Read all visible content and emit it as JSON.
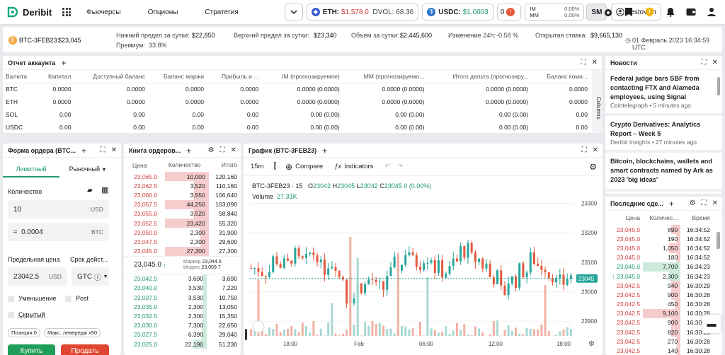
{
  "top": {
    "logo": "Deribit",
    "nav": [
      "Фьючерсы",
      "Опционы",
      "Стратегия"
    ],
    "eth_label": "ETH:",
    "eth_price": "$1,578.0",
    "dvol": "DVOL: 68.36",
    "usdc_label": "USDC:",
    "usdc_price": "$1.0003",
    "notif_count": "0",
    "im_label": "IM",
    "im_val": "0.00%",
    "mm_label": "MM",
    "mm_val": "0.00%",
    "sm": "SM",
    "user": "testovich"
  },
  "ticker": {
    "instrument": "BTC-3FEB23",
    "price": "$23,045",
    "low_label": "Нижний предел за сутки:",
    "low": "$22,850",
    "premium_label": "Премиум:",
    "premium": "33.8%",
    "high_label": "Верхний предел за сутки:",
    "high": "$23,340",
    "volume_label": "Объем за сутки:",
    "volume": "$2,445,600",
    "change_label": "Изменение 24h:",
    "change": "-0.58 %",
    "oi_label": "Открытая ставка:",
    "oi": "$9,665,130",
    "datetime": "01 Февраль 2023 16:34:59 UTC"
  },
  "account": {
    "title": "Отчет аккаунта",
    "columns_tab": "Columns",
    "headers": [
      "Валюта",
      "Капитал",
      "Доступный баланс",
      "Баланс маржи",
      "Прибыль и ...",
      "IM (прогнозируемое)",
      "MM (прогнозируемо...",
      "Итого дельта (прогнозиру...",
      "Баланс коми..."
    ],
    "rows": [
      [
        "BTC",
        "0.0000",
        "0.0000",
        "0.0000",
        "0.0000",
        "0.0000 (0.0000)",
        "0.0000 (0.0000)",
        "0.0000 (0.0000)",
        "0.0000"
      ],
      [
        "ETH",
        "0.0000",
        "0.0000",
        "0.0000",
        "0.0000",
        "0.0000 (0.0000)",
        "0.0000 (0.0000)",
        "0.0000 (0.0000)",
        "0.0000"
      ],
      [
        "SOL",
        "0.00",
        "0.00",
        "0.00",
        "0.00",
        "0.00 (0.00)",
        "0.00 (0.00)",
        "0.00 (0.00)",
        "0.00"
      ],
      [
        "USDC",
        "0.00",
        "0.00",
        "0.00",
        "0.00",
        "0.00 (0.00)",
        "0.00 (0.00)",
        "0.00 (0.00)",
        "0.00"
      ]
    ]
  },
  "order_form": {
    "title": "Форма ордера (BTC...",
    "tab_limit": "Лимитный",
    "tab_market": "Рыночный",
    "qty_label": "Количество",
    "qty": "10",
    "qty_unit": "USD",
    "btc_prefix": "≈",
    "btc_qty": "0.0004",
    "btc_unit": "BTC",
    "limit_label": "Предельная цена",
    "tif_label": "Срок дейст...",
    "limit_price": "23042.5",
    "limit_unit": "USD",
    "tif": "GTC",
    "reduce": "Уменьшение",
    "post": "Post",
    "hidden": "Скрытый",
    "position": "Позиция 0",
    "max_lev": "Макс. левередж x50",
    "buy": "Купить",
    "sell": "Продать"
  },
  "orderbook": {
    "title": "Книга ордеров...",
    "headers": [
      "Цена",
      "Количество",
      "Итого"
    ],
    "asks": [
      [
        "23,065.0",
        "10,000",
        "120,160",
        1.0
      ],
      [
        "23,062.5",
        "3,520",
        "110,160",
        0.35
      ],
      [
        "23,060.0",
        "3,550",
        "106,640",
        0.35
      ],
      [
        "23,057.5",
        "44,250",
        "103,090",
        1.0
      ],
      [
        "23,055.0",
        "3,520",
        "58,840",
        0.35
      ],
      [
        "23,052.5",
        "23,420",
        "55,320",
        1.0
      ],
      [
        "23,050.0",
        "2,300",
        "31,900",
        0.2
      ],
      [
        "23,047.5",
        "2,300",
        "29,600",
        0.2
      ],
      [
        "23,045.0",
        "27,300",
        "27,300",
        1.0
      ]
    ],
    "mid": "23,045.0",
    "mark_label": "Маркер",
    "mark": "23,044.5",
    "index_label": "Индекс",
    "index": "23,009.7",
    "bids": [
      [
        "23,042.5",
        "3,690",
        "3,690",
        0.1
      ],
      [
        "23,040.0",
        "3,530",
        "7,220",
        0.1
      ],
      [
        "23,037.5",
        "3,530",
        "10,750",
        0.1
      ],
      [
        "23,035.0",
        "2,300",
        "13,050",
        0.1
      ],
      [
        "23,032.5",
        "2,300",
        "15,350",
        0.1
      ],
      [
        "23,030.0",
        "7,300",
        "22,650",
        0.15
      ],
      [
        "23,027.5",
        "6,390",
        "29,040",
        0.15
      ],
      [
        "23,025.0",
        "22,190",
        "51,230",
        0.4
      ]
    ]
  },
  "chart": {
    "title": "График (BTC-3FEB23)",
    "interval": "15m",
    "compare": "Compare",
    "indicators": "Indicators",
    "symbol": "BTC-3FEB23 · 15",
    "o_label": "O",
    "o": "23042",
    "h_label": "H",
    "h": "23045",
    "l_label": "L",
    "l": "23042",
    "c_label": "C",
    "c": "23045",
    "chg": "0 (0.00%)",
    "vol_label": "Volume",
    "vol": "27.31K",
    "price_tag": "23045",
    "yticks": [
      "23300",
      "23200",
      "23100",
      "23000",
      "22900"
    ],
    "xticks": [
      "18:00",
      "Feb",
      "06:00",
      "12:00",
      "18:00"
    ]
  },
  "chart_data": {
    "type": "candlestick",
    "y_range": [
      22850,
      23330
    ],
    "ticks": [
      23300,
      23200,
      23100,
      23000,
      22900
    ],
    "last": 23045
  },
  "news": {
    "title": "Новости",
    "items": [
      {
        "headline": "Federal judge bars SBF from contacting FTX and Alameda employees, using Signal",
        "meta": "Cointelegraph • 5 minutes ago"
      },
      {
        "headline": "Crypto Derivatives: Analytics Report – Week 5",
        "meta": "Deribit Insights • 27 minutes ago"
      },
      {
        "headline": "Bitcoin, blockchains, wallets and smart contracts named by Ark as 2023 'big ideas'",
        "meta": ""
      }
    ]
  },
  "trades": {
    "title": "Последние сде...",
    "headers": [
      "Цена",
      "Количес...",
      "Время"
    ],
    "rows": [
      [
        "23,045.0",
        "890",
        "16:34:52",
        "r",
        0.25
      ],
      [
        "23,045.0",
        "190",
        "16:34:52",
        "r",
        0.1
      ],
      [
        "23,045.0",
        "1,050",
        "16:34:52",
        "r",
        0.3
      ],
      [
        "23,045.0",
        "180",
        "16:34:52",
        "r",
        0.1
      ],
      [
        "23,045.0",
        "7,700",
        "16:34:23",
        "g",
        1.0
      ],
      [
        "↑ 23,045.0",
        "2,300",
        "16:34:23",
        "g",
        0.3
      ],
      [
        "23,042.5",
        "940",
        "16:30:29",
        "r",
        0.25
      ],
      [
        "23,042.5",
        "900",
        "16:30:28",
        "r",
        0.25
      ],
      [
        "23,042.5",
        "450",
        "16:30:28",
        "r",
        0.15
      ],
      [
        "23,042.5",
        "9,100",
        "16:30:28",
        "r",
        1.0
      ],
      [
        "23,042.5",
        "900",
        "16:30:28",
        "r",
        0.25
      ],
      [
        "23,042.5",
        "820",
        "16:30:28",
        "r",
        0.25
      ],
      [
        "23,042.5",
        "270",
        "16:30:28",
        "r",
        0.1
      ],
      [
        "23,042.5",
        "140",
        "16:30:28",
        "r",
        0.1
      ]
    ]
  }
}
